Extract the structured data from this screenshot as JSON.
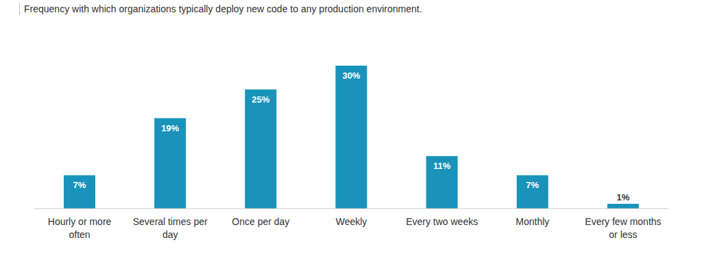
{
  "chart_data": {
    "type": "bar",
    "title": "Frequency with which organizations typically deploy new code to any production environment.",
    "categories": [
      "Hourly or more often",
      "Several times per day",
      "Once per day",
      "Weekly",
      "Every two weeks",
      "Monthly",
      "Every few months or less"
    ],
    "values": [
      7,
      19,
      25,
      30,
      11,
      7,
      1
    ],
    "value_labels": [
      "7%",
      "19%",
      "25%",
      "30%",
      "11%",
      "7%",
      "1%"
    ],
    "color": "#1a93bb",
    "ylim": [
      0,
      30
    ],
    "grid": false,
    "data_labels": true,
    "tick_labels": "x"
  }
}
